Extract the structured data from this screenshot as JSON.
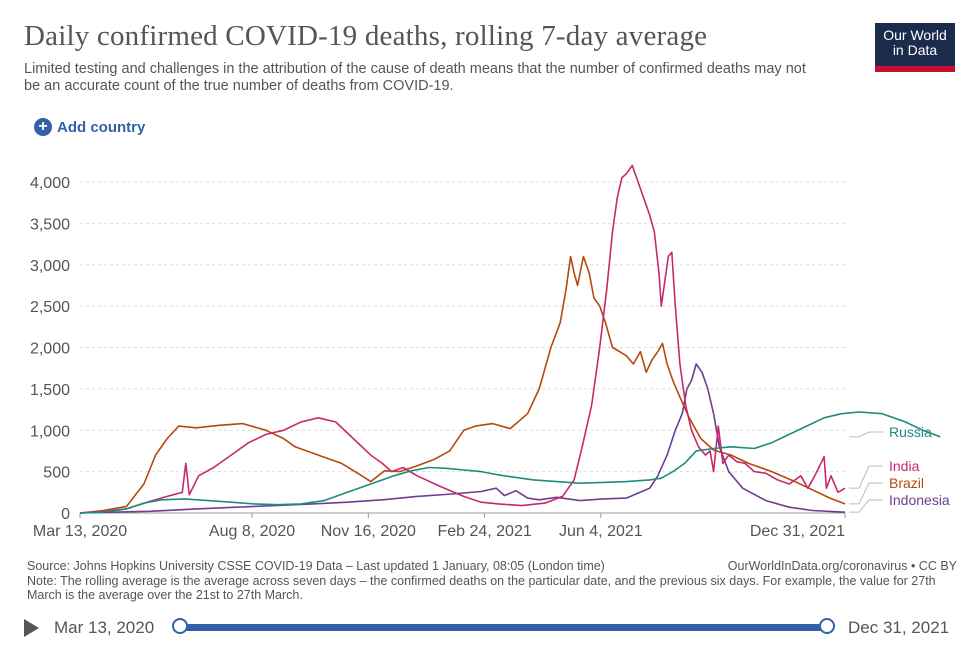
{
  "header": {
    "title": "Daily confirmed COVID-19 deaths, rolling 7-day average",
    "subtitle": "Limited testing and challenges in the attribution of the cause of death means that the number of confirmed deaths may not be an accurate count of the true number of deaths from COVID-19.",
    "logo_line1": "Our World",
    "logo_line2": "in Data"
  },
  "controls": {
    "add_country": "Add country"
  },
  "chart_data": {
    "type": "line",
    "title": "Daily confirmed COVID-19 deaths, rolling 7-day average",
    "x_start": "2020-03-13",
    "x_end": "2021-12-31",
    "x_ticks": [
      {
        "label": "Mar 13, 2020",
        "day": 0
      },
      {
        "label": "Aug 8, 2020",
        "day": 148
      },
      {
        "label": "Nov 16, 2020",
        "day": 248
      },
      {
        "label": "Feb 24, 2021",
        "day": 348
      },
      {
        "label": "Jun 4, 2021",
        "day": 448
      },
      {
        "label": "Dec 31, 2021",
        "day": 658
      }
    ],
    "ylim": [
      0,
      4000
    ],
    "y_ticks": [
      0,
      500,
      1000,
      1500,
      2000,
      2500,
      3000,
      3500,
      4000
    ],
    "y_tick_labels": [
      "0",
      "500",
      "1,000",
      "1,500",
      "2,000",
      "2,500",
      "3,000",
      "3,500",
      "4,000"
    ],
    "series": [
      {
        "name": "Brazil",
        "color": "#b44a0c",
        "points": [
          [
            0,
            0
          ],
          [
            20,
            30
          ],
          [
            40,
            80
          ],
          [
            55,
            350
          ],
          [
            65,
            700
          ],
          [
            75,
            900
          ],
          [
            85,
            1050
          ],
          [
            100,
            1030
          ],
          [
            120,
            1060
          ],
          [
            140,
            1080
          ],
          [
            160,
            1000
          ],
          [
            175,
            900
          ],
          [
            185,
            800
          ],
          [
            205,
            700
          ],
          [
            225,
            600
          ],
          [
            240,
            470
          ],
          [
            250,
            380
          ],
          [
            262,
            510
          ],
          [
            275,
            500
          ],
          [
            290,
            570
          ],
          [
            305,
            650
          ],
          [
            318,
            750
          ],
          [
            330,
            1000
          ],
          [
            340,
            1050
          ],
          [
            355,
            1080
          ],
          [
            370,
            1020
          ],
          [
            385,
            1200
          ],
          [
            395,
            1500
          ],
          [
            405,
            2000
          ],
          [
            413,
            2300
          ],
          [
            418,
            2700
          ],
          [
            422,
            3100
          ],
          [
            425,
            2900
          ],
          [
            428,
            2750
          ],
          [
            433,
            3100
          ],
          [
            438,
            2900
          ],
          [
            442,
            2600
          ],
          [
            447,
            2500
          ],
          [
            452,
            2300
          ],
          [
            458,
            2000
          ],
          [
            464,
            1950
          ],
          [
            470,
            1900
          ],
          [
            476,
            1800
          ],
          [
            482,
            1950
          ],
          [
            487,
            1700
          ],
          [
            492,
            1850
          ],
          [
            497,
            1950
          ],
          [
            501,
            2050
          ],
          [
            505,
            1800
          ],
          [
            510,
            1600
          ],
          [
            516,
            1400
          ],
          [
            524,
            1150
          ],
          [
            534,
            900
          ],
          [
            545,
            760
          ],
          [
            560,
            700
          ],
          [
            575,
            600
          ],
          [
            595,
            500
          ],
          [
            615,
            380
          ],
          [
            630,
            280
          ],
          [
            645,
            180
          ],
          [
            658,
            110
          ]
        ]
      },
      {
        "name": "Indonesia",
        "color": "#6d3e91",
        "points": [
          [
            0,
            0
          ],
          [
            60,
            20
          ],
          [
            100,
            50
          ],
          [
            150,
            80
          ],
          [
            200,
            110
          ],
          [
            230,
            130
          ],
          [
            260,
            160
          ],
          [
            290,
            200
          ],
          [
            320,
            230
          ],
          [
            345,
            260
          ],
          [
            358,
            300
          ],
          [
            365,
            210
          ],
          [
            375,
            270
          ],
          [
            385,
            180
          ],
          [
            395,
            160
          ],
          [
            410,
            190
          ],
          [
            430,
            150
          ],
          [
            450,
            170
          ],
          [
            470,
            180
          ],
          [
            480,
            240
          ],
          [
            490,
            300
          ],
          [
            497,
            450
          ],
          [
            505,
            700
          ],
          [
            512,
            1000
          ],
          [
            518,
            1200
          ],
          [
            522,
            1500
          ],
          [
            526,
            1600
          ],
          [
            530,
            1800
          ],
          [
            535,
            1700
          ],
          [
            540,
            1500
          ],
          [
            545,
            1200
          ],
          [
            550,
            800
          ],
          [
            558,
            500
          ],
          [
            570,
            300
          ],
          [
            590,
            150
          ],
          [
            610,
            70
          ],
          [
            630,
            30
          ],
          [
            658,
            10
          ]
        ]
      },
      {
        "name": "India",
        "color": "#c8286e",
        "points": [
          [
            0,
            0
          ],
          [
            20,
            20
          ],
          [
            40,
            50
          ],
          [
            60,
            140
          ],
          [
            75,
            200
          ],
          [
            88,
            250
          ],
          [
            91,
            600
          ],
          [
            94,
            220
          ],
          [
            102,
            450
          ],
          [
            115,
            550
          ],
          [
            130,
            700
          ],
          [
            145,
            850
          ],
          [
            160,
            950
          ],
          [
            175,
            1000
          ],
          [
            190,
            1100
          ],
          [
            205,
            1150
          ],
          [
            220,
            1100
          ],
          [
            235,
            900
          ],
          [
            250,
            700
          ],
          [
            260,
            600
          ],
          [
            268,
            500
          ],
          [
            278,
            550
          ],
          [
            290,
            450
          ],
          [
            310,
            320
          ],
          [
            330,
            200
          ],
          [
            345,
            130
          ],
          [
            360,
            110
          ],
          [
            380,
            90
          ],
          [
            400,
            120
          ],
          [
            415,
            200
          ],
          [
            425,
            400
          ],
          [
            432,
            800
          ],
          [
            440,
            1300
          ],
          [
            447,
            2000
          ],
          [
            453,
            2700
          ],
          [
            458,
            3400
          ],
          [
            462,
            3800
          ],
          [
            466,
            4050
          ],
          [
            470,
            4100
          ],
          [
            475,
            4200
          ],
          [
            480,
            4000
          ],
          [
            485,
            3800
          ],
          [
            490,
            3600
          ],
          [
            494,
            3400
          ],
          [
            498,
            2900
          ],
          [
            500,
            2500
          ],
          [
            503,
            2800
          ],
          [
            506,
            3100
          ],
          [
            509,
            3150
          ],
          [
            512,
            2500
          ],
          [
            516,
            1800
          ],
          [
            521,
            1300
          ],
          [
            526,
            1000
          ],
          [
            532,
            800
          ],
          [
            538,
            700
          ],
          [
            542,
            750
          ],
          [
            545,
            500
          ],
          [
            549,
            1050
          ],
          [
            553,
            600
          ],
          [
            558,
            700
          ],
          [
            565,
            620
          ],
          [
            572,
            600
          ],
          [
            580,
            500
          ],
          [
            590,
            480
          ],
          [
            600,
            400
          ],
          [
            610,
            350
          ],
          [
            620,
            450
          ],
          [
            626,
            300
          ],
          [
            632,
            450
          ],
          [
            640,
            680
          ],
          [
            642,
            300
          ],
          [
            646,
            450
          ],
          [
            652,
            250
          ],
          [
            658,
            300
          ]
        ]
      },
      {
        "name": "Russia",
        "color": "#1d8c7e",
        "points": [
          [
            0,
            0
          ],
          [
            20,
            10
          ],
          [
            40,
            50
          ],
          [
            55,
            120
          ],
          [
            70,
            160
          ],
          [
            90,
            170
          ],
          [
            110,
            150
          ],
          [
            130,
            130
          ],
          [
            150,
            110
          ],
          [
            170,
            100
          ],
          [
            190,
            110
          ],
          [
            210,
            150
          ],
          [
            230,
            250
          ],
          [
            250,
            350
          ],
          [
            270,
            450
          ],
          [
            285,
            510
          ],
          [
            300,
            550
          ],
          [
            315,
            540
          ],
          [
            330,
            520
          ],
          [
            345,
            500
          ],
          [
            360,
            460
          ],
          [
            375,
            430
          ],
          [
            390,
            400
          ],
          [
            410,
            380
          ],
          [
            430,
            360
          ],
          [
            450,
            370
          ],
          [
            470,
            380
          ],
          [
            490,
            400
          ],
          [
            500,
            420
          ],
          [
            510,
            500
          ],
          [
            520,
            600
          ],
          [
            530,
            750
          ],
          [
            545,
            780
          ],
          [
            560,
            800
          ],
          [
            580,
            780
          ],
          [
            595,
            850
          ],
          [
            610,
            950
          ],
          [
            625,
            1050
          ],
          [
            640,
            1150
          ],
          [
            655,
            1200
          ],
          [
            670,
            1220
          ],
          [
            690,
            1200
          ],
          [
            710,
            1100
          ],
          [
            725,
            1000
          ],
          [
            740,
            920
          ]
        ]
      }
    ],
    "legend": [
      {
        "name": "Russia",
        "value_day": 658
      },
      {
        "name": "India",
        "value_day": 658
      },
      {
        "name": "Brazil",
        "value_day": 658
      },
      {
        "name": "Indonesia",
        "value_day": 658
      }
    ]
  },
  "footer": {
    "source": "Source: Johns Hopkins University CSSE COVID-19 Data – Last updated 1 January, 08:05 (London time)",
    "credit": "OurWorldInData.org/coronavirus • CC BY",
    "note": "Note: The rolling average is the average across seven days – the confirmed deaths on the particular date, and the previous six days. For example, the value for 27th March is the average over the 21st to 27th March."
  },
  "timeline": {
    "start_label": "Mar 13, 2020",
    "end_label": "Dec 31, 2021"
  }
}
